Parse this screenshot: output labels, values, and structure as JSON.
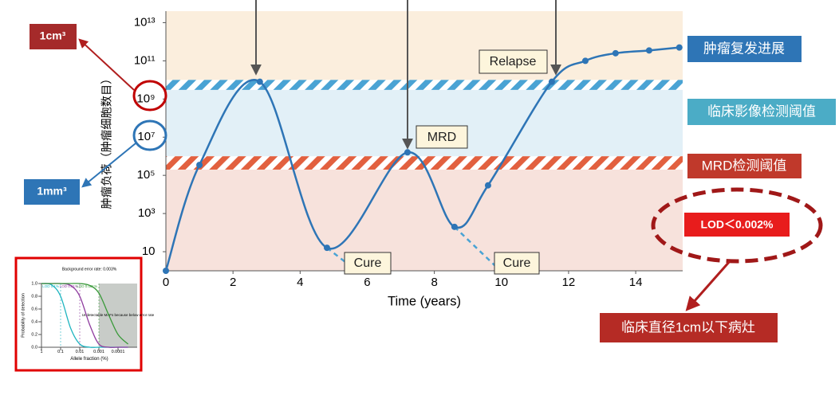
{
  "chart_data": [
    {
      "type": "line",
      "y_label": "肿瘤负荷（肿瘤细胞数目）",
      "x_label": "Time (years)",
      "ylog": true,
      "xlim": [
        0,
        15.4
      ],
      "ylim": [
        1,
        40000000000000
      ],
      "xticks": [
        0,
        2,
        4,
        6,
        8,
        10,
        12,
        14
      ],
      "yticks": [
        10,
        {
          "value": 1000,
          "label": "10³"
        },
        {
          "value": 100000,
          "label": "10⁵"
        },
        {
          "value": 10000000,
          "label": "10⁷"
        },
        {
          "value": 1000000000,
          "label": "10⁹"
        },
        {
          "value": 100000000000,
          "label": "10¹¹"
        },
        {
          "value": 10000000000000,
          "label": "10¹³"
        }
      ],
      "series": [
        {
          "color": "#2e75b6",
          "x": [
            0,
            1,
            2.8,
            4.8,
            7.2,
            8.6,
            9.6,
            11.5,
            12.5,
            13.4,
            14.4,
            15.3
          ],
          "values": [
            1,
            350000,
            8000000000,
            16,
            1600000,
            200,
            30000,
            8000000000,
            100000000000,
            250000000000,
            350000000000,
            500000000000
          ]
        }
      ],
      "cure_tails": [
        {
          "x": [
            4.8,
            5.6
          ],
          "values": [
            16,
            1.3
          ]
        },
        {
          "x": [
            8.6,
            9.9
          ],
          "values": [
            200,
            1.3
          ]
        }
      ],
      "bands": [
        {
          "name": "临床影像检测阈值",
          "range": [
            3000000000,
            10000000000
          ],
          "color": "#4aa3d4"
        },
        {
          "name": "MRD检测阈值",
          "range": [
            200000,
            1000000
          ],
          "color": "#e2603f"
        }
      ],
      "callouts": {
        "relapse": "Relapse",
        "mrd": "MRD",
        "cure": "Cure",
        "progression": "肿瘤复发进展",
        "lod": "LOD＜0.002%",
        "small_lesion": "临床直径1cm以下病灶",
        "cm3": "1cm³",
        "mm3": "1mm³"
      }
    },
    {
      "type": "line",
      "title": "Background error rate: 0.003%",
      "y_label": "Probability of detection",
      "x_label": "Allele fraction (%)",
      "xlog": true,
      "xlim": [
        1,
        1e-05
      ],
      "ylim": [
        0,
        1
      ],
      "xticks": [
        1,
        0.1,
        0.01,
        0.001,
        0.0001
      ],
      "yticks": [
        {
          "value": 0,
          "label": "0.0"
        },
        {
          "value": 0.2,
          "label": "0.2"
        },
        {
          "value": 0.4,
          "label": "0.4"
        },
        {
          "value": 0.6,
          "label": "0.6"
        },
        {
          "value": 0.8,
          "label": "0.8"
        },
        {
          "value": 1,
          "label": "1.0"
        }
      ],
      "lod_lines": [
        0.1,
        0.01,
        0.001
      ],
      "note": "Undetectable MAFs because below error rate",
      "x": [
        1,
        0.3,
        0.1,
        0.03,
        0.01,
        0.003,
        0.001,
        0.0003,
        0.0001,
        3e-05
      ],
      "series": [
        {
          "name": "LOD 0.1%",
          "color": "#1fb5c0",
          "values": [
            1,
            0.98,
            0.8,
            0.3,
            0.05,
            0,
            0,
            0,
            0,
            0
          ]
        },
        {
          "name": "LOD 0.01%",
          "color": "#8e3b9e",
          "values": [
            1,
            1,
            1,
            0.97,
            0.8,
            0.35,
            0.05,
            0,
            0,
            0
          ]
        },
        {
          "name": "LOD 0.001%",
          "color": "#3a9a3a",
          "values": [
            1,
            1,
            1,
            1,
            1,
            0.97,
            0.85,
            0.5,
            0.2,
            0.05
          ]
        }
      ]
    }
  ]
}
